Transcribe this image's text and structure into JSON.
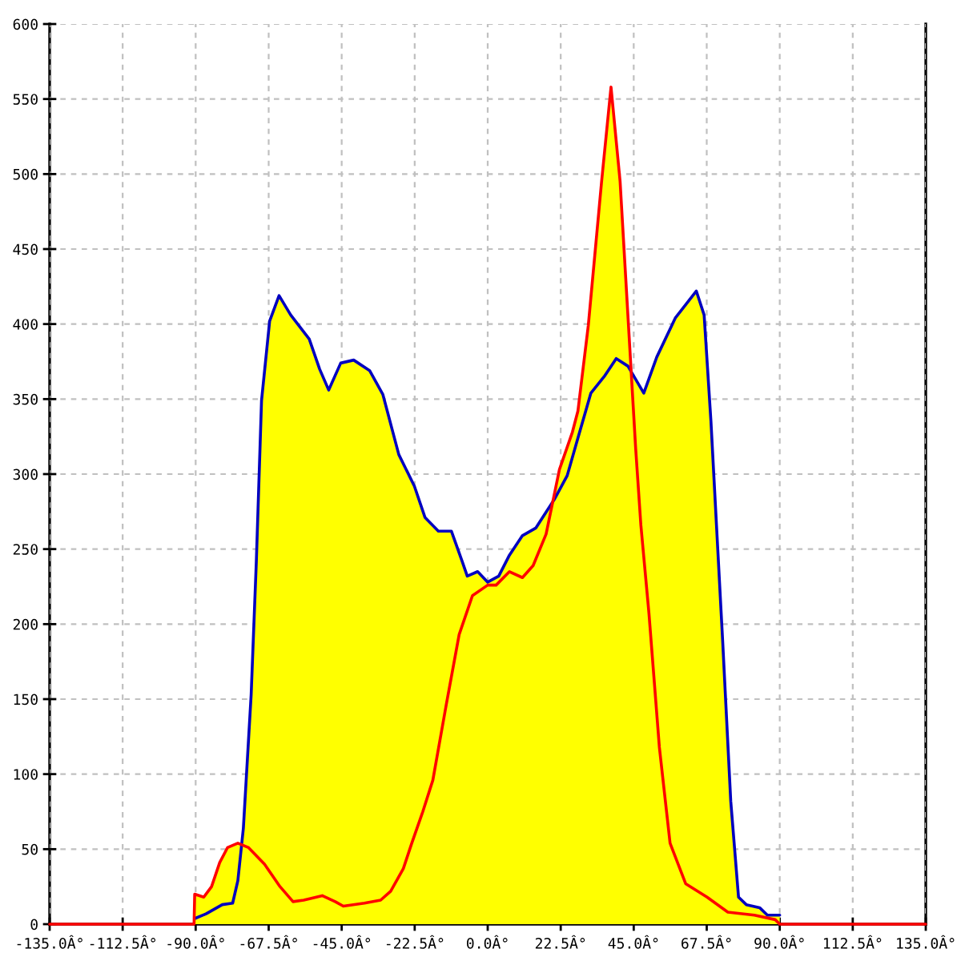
{
  "chart_data": {
    "type": "line",
    "xlim": [
      -135,
      135
    ],
    "ylim": [
      0,
      600
    ],
    "xticks": [
      {
        "value": -135,
        "label": "-135.0Â°"
      },
      {
        "value": -112.5,
        "label": "-112.5Â°"
      },
      {
        "value": -90,
        "label": "-90.0Â°"
      },
      {
        "value": -67.5,
        "label": "-67.5Â°"
      },
      {
        "value": -45,
        "label": "-45.0Â°"
      },
      {
        "value": -22.5,
        "label": "-22.5Â°"
      },
      {
        "value": 0,
        "label": "0.0Â°"
      },
      {
        "value": 22.5,
        "label": "22.5Â°"
      },
      {
        "value": 45,
        "label": "45.0Â°"
      },
      {
        "value": 67.5,
        "label": "67.5Â°"
      },
      {
        "value": 90,
        "label": "90.0Â°"
      },
      {
        "value": 112.5,
        "label": "112.5Â°"
      },
      {
        "value": 135,
        "label": "135.0Â°"
      }
    ],
    "yticks": [
      0,
      50,
      100,
      150,
      200,
      250,
      300,
      350,
      400,
      450,
      500,
      550,
      600
    ],
    "grid": true,
    "series": [
      {
        "type": "area",
        "color": "#ffff00",
        "x": [
          -90.3,
          -87.5,
          -85.1,
          -82.6,
          -80.2,
          -77,
          -75.8,
          -75.3,
          -72.9,
          -71.3,
          -69.7,
          -67.2,
          -64.3,
          -60.7,
          -55,
          -51.8,
          -49,
          -45.3,
          -41.3,
          -36.4,
          -32.3,
          -27.4,
          -22.6,
          -19.3,
          -15.2,
          -11.2,
          -7.9,
          -6.3,
          -3.1,
          0,
          3.4,
          6.7,
          10.7,
          14.8,
          20,
          22.1,
          26.1,
          27.8,
          31,
          35.1,
          38,
          40.8,
          43.2,
          44.2,
          48.1,
          52.1,
          57.8,
          64.3,
          66.7,
          68.8,
          70.5,
          72.4,
          74.9,
          77.3,
          79.7,
          83.8,
          86.2,
          90
        ],
        "values": [
          20,
          18,
          25,
          41,
          51,
          54,
          53,
          64,
          153,
          242,
          349,
          402,
          419,
          406,
          390,
          370,
          356,
          374,
          376,
          369,
          353,
          313,
          292,
          271,
          262,
          262,
          242,
          232,
          235,
          228,
          232,
          246,
          259,
          264,
          281,
          303,
          328,
          342,
          399,
          495,
          558,
          495,
          406,
          369,
          354,
          378,
          404,
          422,
          406,
          335,
          266,
          189,
          82,
          18,
          13,
          11,
          6,
          6
        ]
      },
      {
        "color": "#0000c0",
        "x": [
          -90,
          -86.7,
          -81.8,
          -78.6,
          -77,
          -75.3,
          -72.9,
          -71.3,
          -69.7,
          -67.2,
          -64.3,
          -60.7,
          -55,
          -51.8,
          -49,
          -45.3,
          -41.3,
          -36.4,
          -32.3,
          -27.4,
          -22.6,
          -19.3,
          -15.2,
          -11.2,
          -7.9,
          -6.3,
          -3.1,
          0,
          3.4,
          6.7,
          10.7,
          14.8,
          20.5,
          24.5,
          27.8,
          31.8,
          35.9,
          39.6,
          43.2,
          48.1,
          52.1,
          57.8,
          64.3,
          66.7,
          68.8,
          70.5,
          72.4,
          74.9,
          77.3,
          79.7,
          83.8,
          86.2,
          90
        ],
        "values": [
          4,
          7,
          13,
          14,
          29,
          64,
          153,
          242,
          349,
          402,
          419,
          406,
          390,
          370,
          356,
          374,
          376,
          369,
          353,
          313,
          292,
          271,
          262,
          262,
          242,
          232,
          235,
          228,
          232,
          246,
          259,
          264,
          283,
          299,
          324,
          354,
          365,
          377,
          372,
          354,
          378,
          404,
          422,
          406,
          335,
          266,
          189,
          82,
          18,
          13,
          11,
          6,
          6
        ]
      },
      {
        "color": "#ff0000",
        "x": [
          -135,
          -90.5,
          -90.3,
          -87.5,
          -85.1,
          -82.6,
          -80.2,
          -77,
          -73.7,
          -68.8,
          -64,
          -60,
          -56.7,
          -51,
          -47,
          -44.5,
          -38,
          -33,
          -29.9,
          -26,
          -23.4,
          -20,
          -16.9,
          -12.8,
          -8.8,
          -4.7,
          0,
          2.6,
          6.7,
          10.7,
          14,
          18,
          22.1,
          26.1,
          27.8,
          31,
          35.1,
          38,
          40.8,
          43.2,
          45.6,
          47.2,
          49.7,
          52.9,
          56.2,
          61,
          67.6,
          74,
          82.2,
          88.6,
          90,
          135
        ],
        "values": [
          0,
          0,
          20,
          18,
          25,
          41,
          51,
          54,
          51,
          40,
          25,
          15,
          16,
          19,
          15,
          12,
          14,
          16,
          22,
          37,
          54,
          75,
          96,
          146,
          193,
          219,
          226,
          226,
          235,
          231,
          239,
          260,
          303,
          328,
          342,
          399,
          495,
          558,
          495,
          406,
          317,
          266,
          207,
          118,
          54,
          27,
          18,
          8,
          6,
          3,
          0,
          0
        ]
      }
    ]
  }
}
